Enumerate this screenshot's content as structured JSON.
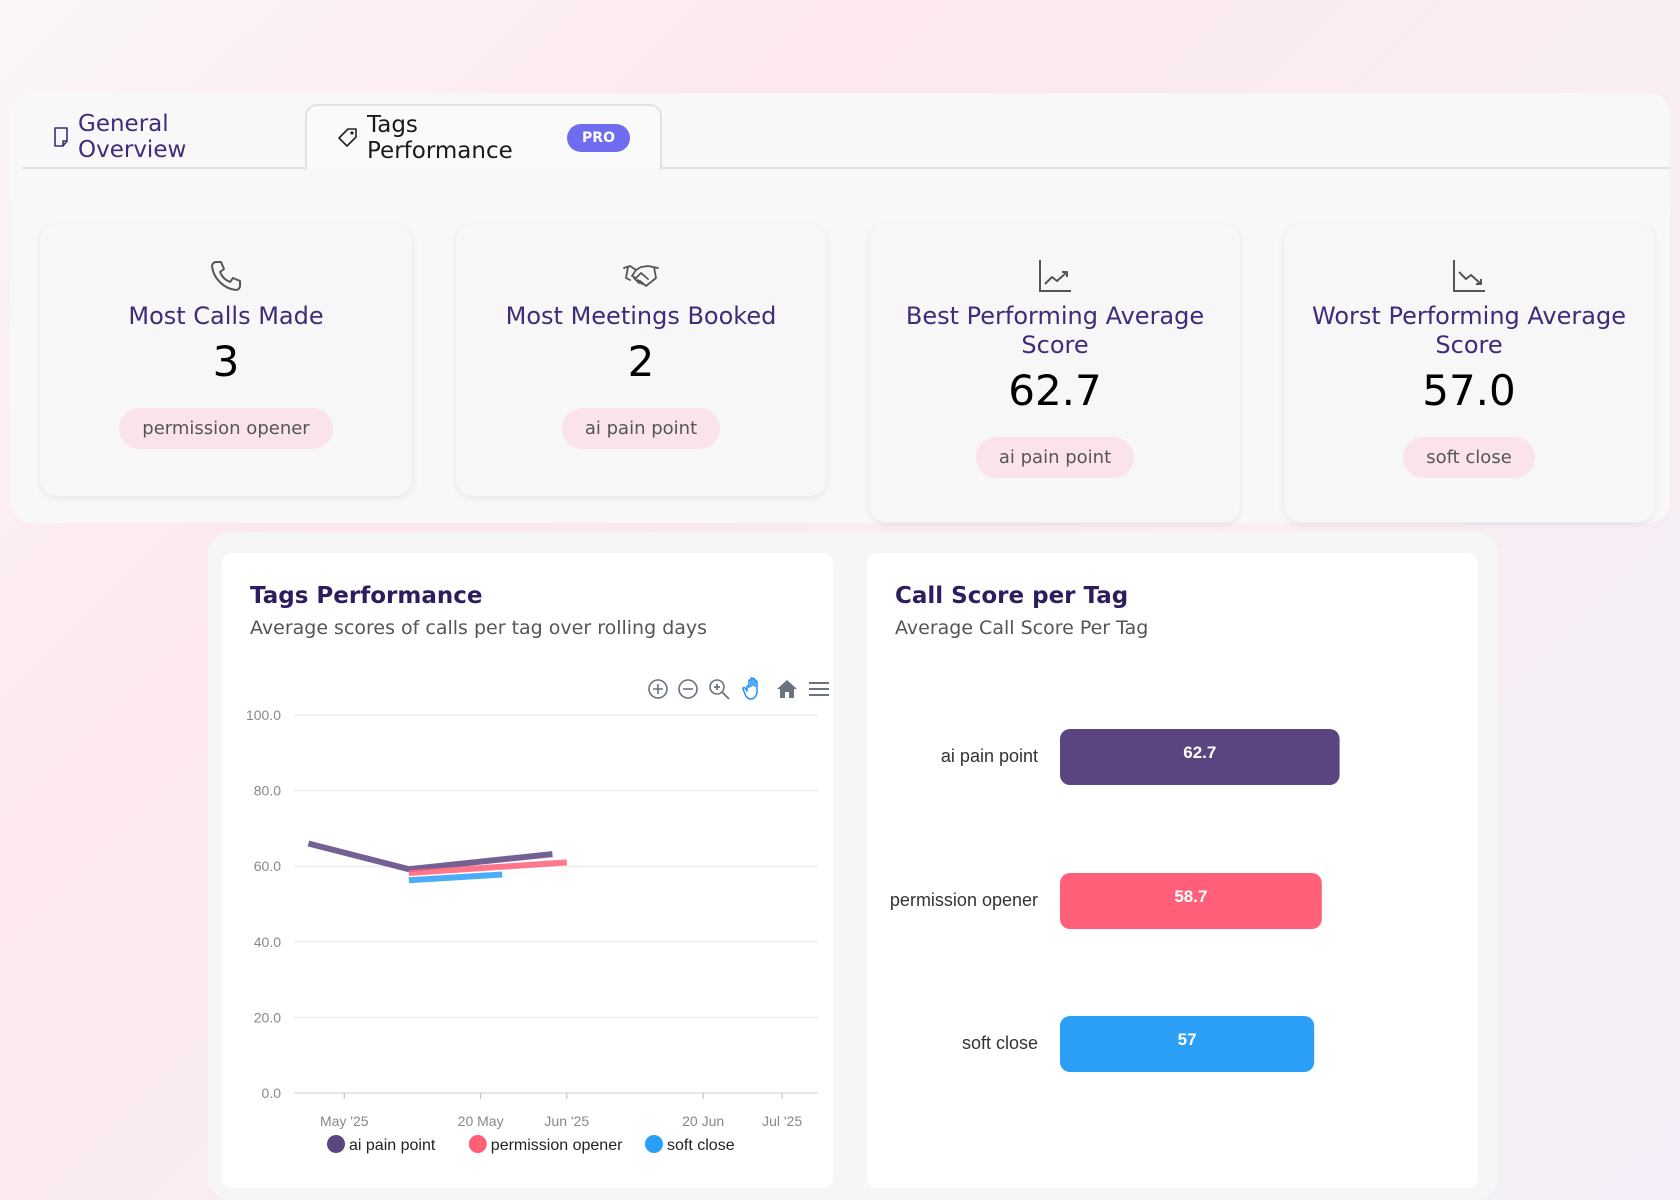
{
  "tabs": [
    {
      "label": "General Overview",
      "icon": "document-icon"
    },
    {
      "label": "Tags Performance",
      "icon": "tag-icon",
      "badge": "PRO"
    }
  ],
  "stats": [
    {
      "title": "Most Calls Made",
      "value": "3",
      "tag": "permission opener",
      "icon": "phone-icon"
    },
    {
      "title": "Most Meetings Booked",
      "value": "2",
      "tag": "ai pain point",
      "icon": "handshake-icon"
    },
    {
      "title": "Best Performing Average Score",
      "value": "62.7",
      "tag": "ai pain point",
      "icon": "trend-up-icon"
    },
    {
      "title": "Worst Performing Average Score",
      "value": "57.0",
      "tag": "soft close",
      "icon": "trend-down-icon"
    }
  ],
  "colors": {
    "ai": "#5b4580",
    "permission": "#ff5f78",
    "soft": "#2b9ff5",
    "title": "#3f2b79"
  },
  "chart_data": [
    {
      "type": "line",
      "title": "Tags Performance",
      "subtitle": "Average scores of calls per tag over rolling days",
      "ylim": [
        0,
        100
      ],
      "yticks": [
        "0.0",
        "20.0",
        "40.0",
        "60.0",
        "80.0",
        "100.0"
      ],
      "xticks": [
        "May '25",
        "20 May",
        "Jun '25",
        "20 Jun",
        "Jul '25"
      ],
      "x_domain": [
        "2025-04-24",
        "2025-07-06"
      ],
      "grid": true,
      "legend": "bottom",
      "series": [
        {
          "name": "ai pain point",
          "color": "#5b4580",
          "points": [
            [
              "2025-04-26",
              66
            ],
            [
              "2025-05-10",
              59.2
            ],
            [
              "2025-05-30",
              63.2
            ]
          ]
        },
        {
          "name": "permission opener",
          "color": "#ff5f78",
          "points": [
            [
              "2025-05-10",
              58.2
            ],
            [
              "2025-06-01",
              61
            ]
          ]
        },
        {
          "name": "soft close",
          "color": "#2b9ff5",
          "points": [
            [
              "2025-05-10",
              56.3
            ],
            [
              "2025-05-23",
              57.8
            ]
          ]
        }
      ]
    },
    {
      "type": "bar",
      "orientation": "horizontal",
      "title": "Call Score per Tag",
      "subtitle": "Average Call Score Per Tag",
      "categories": [
        "ai pain point",
        "permission opener",
        "soft close"
      ],
      "values": [
        62.7,
        58.7,
        57
      ],
      "labels": [
        "62.7",
        "58.7",
        "57"
      ],
      "colors": [
        "#5b4580",
        "#ff5f78",
        "#2b9ff5"
      ],
      "xlim": [
        0,
        100
      ]
    }
  ]
}
